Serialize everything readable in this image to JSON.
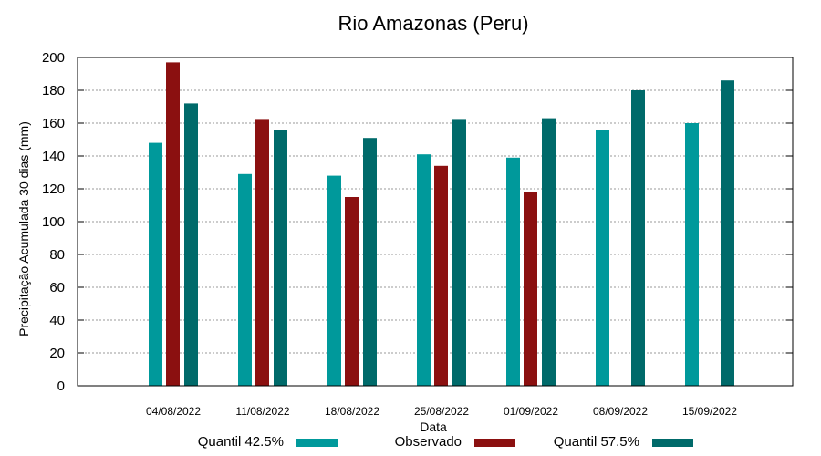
{
  "chart_data": {
    "type": "bar",
    "title": "Rio Amazonas (Peru)",
    "xlabel": "Data",
    "ylabel": "Precipitação Acumulada 30 dias (mm)",
    "ylim": [
      0,
      200
    ],
    "yticks": [
      0,
      20,
      40,
      60,
      80,
      100,
      120,
      140,
      160,
      180,
      200
    ],
    "grid": true,
    "legend_position": "bottom",
    "categories": [
      "04/08/2022",
      "11/08/2022",
      "18/08/2022",
      "25/08/2022",
      "01/09/2022",
      "08/09/2022",
      "15/09/2022"
    ],
    "series": [
      {
        "name": "Quantil 42.5%",
        "color": "#00999b",
        "values": [
          148,
          129,
          128,
          141,
          139,
          156,
          160
        ]
      },
      {
        "name": "Observado",
        "color": "#8b1010",
        "values": [
          197,
          162,
          115,
          134,
          118,
          null,
          null
        ]
      },
      {
        "name": "Quantil 57.5%",
        "color": "#006a6a",
        "values": [
          172,
          156,
          151,
          162,
          163,
          180,
          186
        ]
      }
    ]
  }
}
